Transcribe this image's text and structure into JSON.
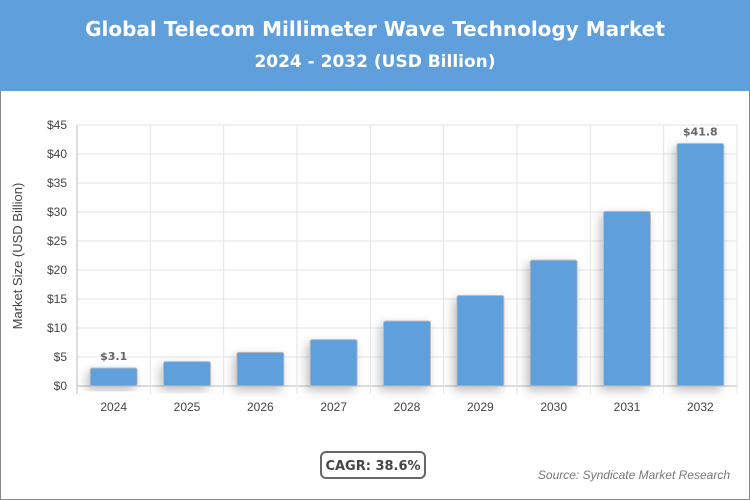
{
  "chart_data": {
    "type": "bar",
    "title": "Global Telecom Millimeter Wave Technology Market",
    "subtitle": "2024 - 2032 (USD Billion)",
    "ylabel": "Market Size (USD Billion)",
    "xlabel": "",
    "categories": [
      "2024",
      "2025",
      "2026",
      "2027",
      "2028",
      "2029",
      "2030",
      "2031",
      "2032"
    ],
    "values": [
      3.1,
      4.2,
      5.8,
      8.0,
      11.2,
      15.6,
      21.7,
      30.1,
      41.8
    ],
    "data_labels": {
      "0": "$3.1",
      "8": "$41.8"
    },
    "ylim": [
      0,
      45
    ],
    "yticks": [
      "$0",
      "$5",
      "$10",
      "$15",
      "$20",
      "$25",
      "$30",
      "$35",
      "$40",
      "$45"
    ],
    "grid": true,
    "bar_color": "#5f9fdc",
    "header_color": "#5f9fdc"
  },
  "cagr": "CAGR: 38.6%",
  "source": "Source: Syndicate Market Research"
}
